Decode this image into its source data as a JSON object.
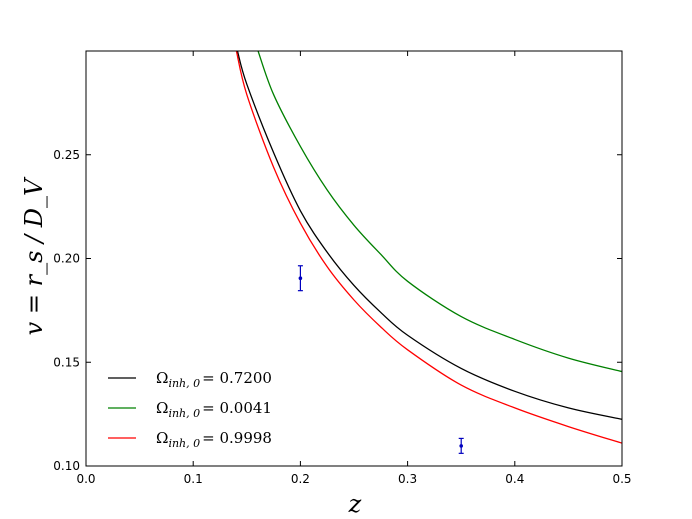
{
  "chart_data": {
    "type": "line",
    "xlabel": "z",
    "ylabel": "v = r_s / D_V",
    "xlim": [
      0.0,
      0.5
    ],
    "ylim": [
      0.1,
      0.3
    ],
    "xticks": [
      "0.0",
      "0.1",
      "0.2",
      "0.3",
      "0.4",
      "0.5"
    ],
    "yticks": [
      "0.10",
      "0.15",
      "0.20",
      "0.25"
    ],
    "xtick_values": [
      0.0,
      0.1,
      0.2,
      0.3,
      0.4,
      0.5
    ],
    "ytick_values": [
      0.1,
      0.15,
      0.2,
      0.25
    ],
    "grid": false,
    "legend_position": "lower-left",
    "series": [
      {
        "name": "Ω_inh,0 = 0.7200",
        "legend_symbol": "Ω",
        "legend_sub": "inh, 0",
        "legend_value": "= 0.7200",
        "color": "#000000",
        "x": [
          0.1413,
          0.15,
          0.175,
          0.2,
          0.225,
          0.25,
          0.275,
          0.3,
          0.35,
          0.4,
          0.45,
          0.5
        ],
        "y": [
          0.3,
          0.284,
          0.251,
          0.223,
          0.203,
          0.187,
          0.174,
          0.163,
          0.147,
          0.136,
          0.128,
          0.1225
        ]
      },
      {
        "name": "Ω_inh,0 = 0.0041",
        "legend_symbol": "Ω",
        "legend_sub": "inh, 0",
        "legend_value": "= 0.0041",
        "color": "#008000",
        "x": [
          0.1605,
          0.175,
          0.2,
          0.225,
          0.25,
          0.275,
          0.3,
          0.35,
          0.4,
          0.45,
          0.5
        ],
        "y": [
          0.3,
          0.279,
          0.254,
          0.233,
          0.216,
          0.202,
          0.189,
          0.172,
          0.161,
          0.152,
          0.1455
        ]
      },
      {
        "name": "Ω_inh,0 = 0.9998",
        "legend_symbol": "Ω",
        "legend_sub": "inh, 0",
        "legend_value": "= 0.9998",
        "color": "#ff0000",
        "x": [
          0.1403,
          0.15,
          0.175,
          0.2,
          0.225,
          0.25,
          0.275,
          0.3,
          0.35,
          0.4,
          0.45,
          0.5
        ],
        "y": [
          0.3,
          0.279,
          0.244,
          0.217,
          0.196,
          0.18,
          0.167,
          0.156,
          0.139,
          0.128,
          0.119,
          0.111
        ]
      }
    ],
    "data_points": [
      {
        "x": 0.2,
        "y": 0.1905,
        "yerr": 0.006
      },
      {
        "x": 0.35,
        "y": 0.1097,
        "yerr": 0.0036
      }
    ],
    "data_point_color": "#0000bf"
  }
}
